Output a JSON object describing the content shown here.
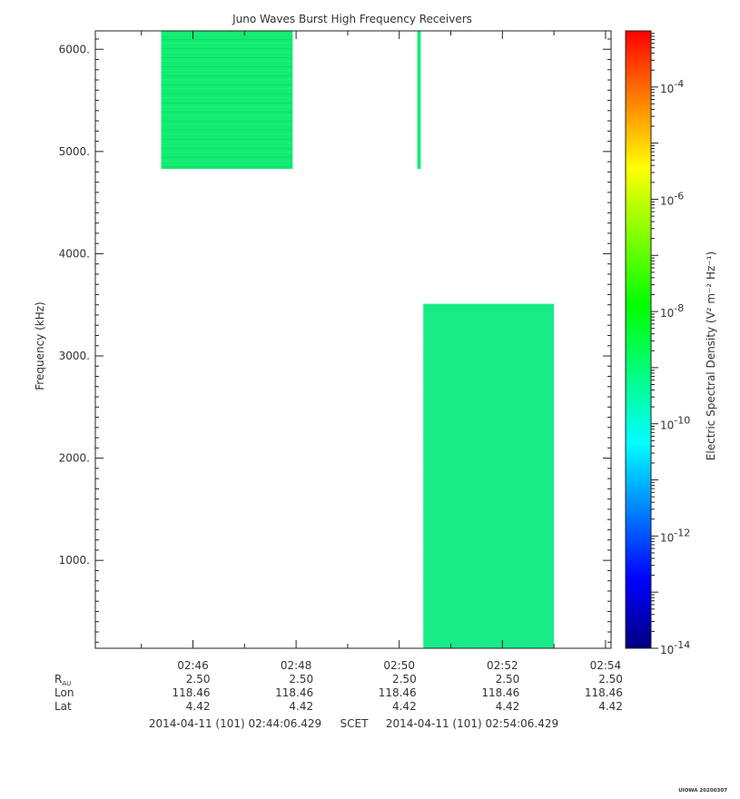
{
  "chart_data": {
    "type": "heatmap",
    "title": "Juno Waves Burst High Frequency Receivers",
    "ylabel": "Frequency (kHz)",
    "colorbar_label": "Electric Spectral Density (V² m⁻² Hz⁻¹)",
    "x_range": [
      "02:44:06.429",
      "02:54:06.429"
    ],
    "ylim": [
      140,
      6180
    ],
    "y_ticks": [
      {
        "value": 1000,
        "label": "1000."
      },
      {
        "value": 2000,
        "label": "2000."
      },
      {
        "value": 3000,
        "label": "3000."
      },
      {
        "value": 4000,
        "label": "4000."
      },
      {
        "value": 5000,
        "label": "5000."
      },
      {
        "value": 6000,
        "label": "6000."
      }
    ],
    "x_ticks": [
      {
        "time": "02:46",
        "label": "02:46"
      },
      {
        "time": "02:48",
        "label": "02:48"
      },
      {
        "time": "02:50",
        "label": "02:50"
      },
      {
        "time": "02:52",
        "label": "02:52"
      },
      {
        "time": "02:54",
        "label": "02:54"
      }
    ],
    "colorbar": {
      "scale": "log",
      "range": [
        1e-14,
        0.001
      ],
      "ticks": [
        {
          "exp": -14,
          "mantissa": "10",
          "sup": "-14"
        },
        {
          "exp": -12,
          "mantissa": "10",
          "sup": "-12"
        },
        {
          "exp": -10,
          "mantissa": "10",
          "sup": "-10"
        },
        {
          "exp": -8,
          "mantissa": "10",
          "sup": "-8"
        },
        {
          "exp": -6,
          "mantissa": "10",
          "sup": "-6"
        },
        {
          "exp": -4,
          "mantissa": "10",
          "sup": "-4"
        }
      ],
      "colors": [
        "#000080",
        "#0000ff",
        "#0080ff",
        "#00ffff",
        "#00ff80",
        "#00ff00",
        "#80ff00",
        "#ffff00",
        "#ff8000",
        "#ff0000"
      ]
    },
    "blocks": [
      {
        "t_start": "02:45:23",
        "t_end": "02:47:56",
        "f_min": 4830,
        "f_max": 6180,
        "level": -9.0,
        "color": "#10ee70"
      },
      {
        "t_start": "02:50:21",
        "t_end": "02:50:25",
        "f_min": 4830,
        "f_max": 6180,
        "level": -9.0,
        "color": "#10ee70"
      },
      {
        "t_start": "02:50:28",
        "t_end": "02:53:00",
        "f_min": 140,
        "f_max": 3510,
        "level": -9.5,
        "color": "#18ee86"
      }
    ],
    "ephemeris": {
      "rows": [
        {
          "label": "R",
          "sub": "AU",
          "values": [
            "2.50",
            "2.50",
            "2.50",
            "2.50",
            "2.50"
          ]
        },
        {
          "label": "Lon",
          "sub": "",
          "values": [
            "118.46",
            "118.46",
            "118.46",
            "118.46",
            "118.46"
          ]
        },
        {
          "label": "Lat",
          "sub": "",
          "values": [
            "4.42",
            "4.42",
            "4.42",
            "4.42",
            "4.42"
          ]
        }
      ]
    },
    "time_span": {
      "start": "2014-04-11 (101) 02:44:06.429",
      "frame": "SCET",
      "end": "2014-04-11 (101) 02:54:06.429"
    },
    "stamp": "UIOWA 20200307"
  }
}
